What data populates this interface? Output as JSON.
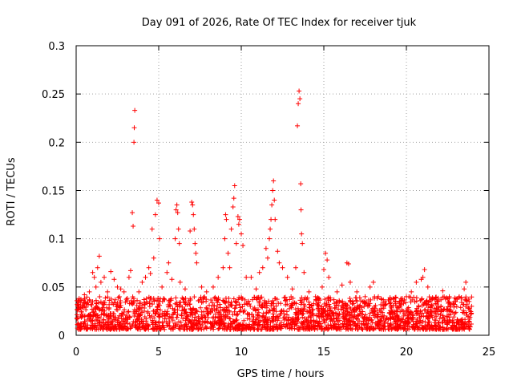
{
  "chart_data": {
    "type": "scatter",
    "title": "Day 091 of 2026, Rate Of TEC Index for receiver tjuk",
    "xlabel": "GPS time / hours",
    "ylabel": "ROTI / TECUs",
    "xlim": [
      0,
      25
    ],
    "ylim": [
      0,
      0.3
    ],
    "x_ticks": [
      "0",
      "5",
      "10",
      "15",
      "20",
      "25"
    ],
    "y_ticks": [
      "0",
      "0.05",
      "0.1",
      "0.15",
      "0.2",
      "0.25",
      "0.3"
    ],
    "grid": true,
    "marker": "+",
    "series_color": "#ff0000",
    "series": [
      {
        "name": "ROTI",
        "points": [
          [
            0.1,
            0.03
          ],
          [
            0.3,
            0.036
          ],
          [
            0.5,
            0.042
          ],
          [
            0.7,
            0.034
          ],
          [
            0.8,
            0.045
          ],
          [
            1.0,
            0.065
          ],
          [
            1.1,
            0.06
          ],
          [
            1.2,
            0.05
          ],
          [
            1.3,
            0.07
          ],
          [
            1.4,
            0.082
          ],
          [
            1.5,
            0.055
          ],
          [
            1.7,
            0.06
          ],
          [
            1.9,
            0.045
          ],
          [
            2.1,
            0.066
          ],
          [
            2.3,
            0.058
          ],
          [
            2.5,
            0.05
          ],
          [
            2.7,
            0.048
          ],
          [
            2.9,
            0.045
          ],
          [
            3.2,
            0.06
          ],
          [
            3.3,
            0.067
          ],
          [
            3.4,
            0.127
          ],
          [
            3.45,
            0.113
          ],
          [
            3.5,
            0.2
          ],
          [
            3.52,
            0.215
          ],
          [
            3.55,
            0.233
          ],
          [
            3.8,
            0.045
          ],
          [
            4.0,
            0.055
          ],
          [
            4.2,
            0.06
          ],
          [
            4.4,
            0.07
          ],
          [
            4.5,
            0.064
          ],
          [
            4.6,
            0.11
          ],
          [
            4.7,
            0.08
          ],
          [
            4.8,
            0.125
          ],
          [
            4.9,
            0.14
          ],
          [
            5.0,
            0.137
          ],
          [
            5.05,
            0.1
          ],
          [
            5.2,
            0.05
          ],
          [
            5.5,
            0.065
          ],
          [
            5.6,
            0.075
          ],
          [
            5.8,
            0.058
          ],
          [
            6.0,
            0.1
          ],
          [
            6.05,
            0.13
          ],
          [
            6.1,
            0.135
          ],
          [
            6.15,
            0.127
          ],
          [
            6.2,
            0.11
          ],
          [
            6.25,
            0.095
          ],
          [
            6.3,
            0.055
          ],
          [
            6.6,
            0.048
          ],
          [
            6.9,
            0.108
          ],
          [
            7.0,
            0.138
          ],
          [
            7.05,
            0.135
          ],
          [
            7.1,
            0.125
          ],
          [
            7.15,
            0.11
          ],
          [
            7.2,
            0.095
          ],
          [
            7.25,
            0.085
          ],
          [
            7.3,
            0.075
          ],
          [
            7.6,
            0.05
          ],
          [
            7.9,
            0.045
          ],
          [
            8.3,
            0.05
          ],
          [
            8.6,
            0.06
          ],
          [
            8.9,
            0.07
          ],
          [
            9.0,
            0.1
          ],
          [
            9.05,
            0.125
          ],
          [
            9.1,
            0.12
          ],
          [
            9.2,
            0.085
          ],
          [
            9.3,
            0.07
          ],
          [
            9.4,
            0.11
          ],
          [
            9.5,
            0.133
          ],
          [
            9.55,
            0.142
          ],
          [
            9.6,
            0.155
          ],
          [
            9.7,
            0.095
          ],
          [
            9.8,
            0.123
          ],
          [
            9.85,
            0.115
          ],
          [
            9.9,
            0.12
          ],
          [
            10.0,
            0.105
          ],
          [
            10.1,
            0.093
          ],
          [
            10.3,
            0.06
          ],
          [
            10.6,
            0.06
          ],
          [
            10.9,
            0.048
          ],
          [
            11.1,
            0.065
          ],
          [
            11.3,
            0.07
          ],
          [
            11.5,
            0.09
          ],
          [
            11.6,
            0.08
          ],
          [
            11.7,
            0.1
          ],
          [
            11.75,
            0.11
          ],
          [
            11.8,
            0.12
          ],
          [
            11.85,
            0.135
          ],
          [
            11.9,
            0.15
          ],
          [
            11.95,
            0.16
          ],
          [
            12.0,
            0.14
          ],
          [
            12.05,
            0.12
          ],
          [
            12.2,
            0.087
          ],
          [
            12.3,
            0.075
          ],
          [
            12.5,
            0.07
          ],
          [
            12.8,
            0.06
          ],
          [
            13.1,
            0.048
          ],
          [
            13.3,
            0.07
          ],
          [
            13.4,
            0.217
          ],
          [
            13.45,
            0.24
          ],
          [
            13.5,
            0.253
          ],
          [
            13.55,
            0.245
          ],
          [
            13.6,
            0.157
          ],
          [
            13.62,
            0.13
          ],
          [
            13.65,
            0.105
          ],
          [
            13.7,
            0.095
          ],
          [
            13.8,
            0.065
          ],
          [
            14.1,
            0.045
          ],
          [
            14.5,
            0.04
          ],
          [
            14.9,
            0.05
          ],
          [
            15.0,
            0.068
          ],
          [
            15.1,
            0.085
          ],
          [
            15.2,
            0.078
          ],
          [
            15.3,
            0.06
          ],
          [
            15.8,
            0.045
          ],
          [
            16.1,
            0.052
          ],
          [
            16.4,
            0.075
          ],
          [
            16.5,
            0.074
          ],
          [
            16.6,
            0.055
          ],
          [
            17.0,
            0.045
          ],
          [
            17.5,
            0.04
          ],
          [
            17.8,
            0.05
          ],
          [
            18.0,
            0.055
          ],
          [
            18.3,
            0.04
          ],
          [
            18.7,
            0.035
          ],
          [
            19.2,
            0.038
          ],
          [
            19.6,
            0.033
          ],
          [
            20.0,
            0.04
          ],
          [
            20.3,
            0.045
          ],
          [
            20.6,
            0.055
          ],
          [
            20.9,
            0.058
          ],
          [
            21.0,
            0.06
          ],
          [
            21.1,
            0.068
          ],
          [
            21.3,
            0.05
          ],
          [
            21.6,
            0.038
          ],
          [
            21.9,
            0.035
          ],
          [
            22.2,
            0.046
          ],
          [
            22.6,
            0.04
          ],
          [
            22.9,
            0.032
          ],
          [
            23.2,
            0.04
          ],
          [
            23.5,
            0.048
          ],
          [
            23.6,
            0.055
          ],
          [
            23.8,
            0.035
          ],
          [
            23.95,
            0.03
          ]
        ]
      }
    ]
  }
}
